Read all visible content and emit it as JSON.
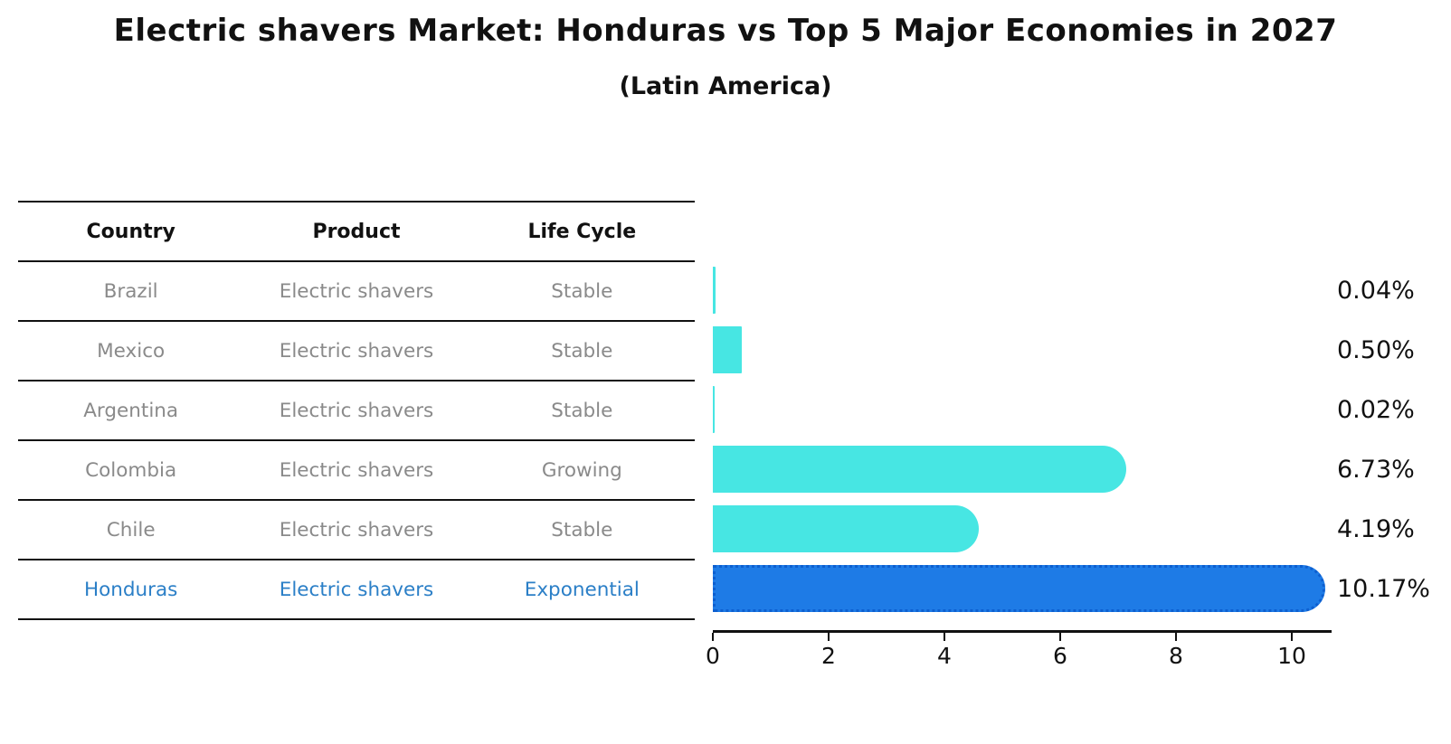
{
  "title": "Electric shavers Market: Honduras vs Top 5 Major Economies in 2027",
  "subtitle": "(Latin America)",
  "table": {
    "headers": [
      "Country",
      "Product",
      "Life Cycle"
    ],
    "rows": [
      {
        "country": "Brazil",
        "product": "Electric shavers",
        "life_cycle": "Stable",
        "highlighted": false
      },
      {
        "country": "Mexico",
        "product": "Electric shavers",
        "life_cycle": "Stable",
        "highlighted": false
      },
      {
        "country": "Argentina",
        "product": "Electric shavers",
        "life_cycle": "Stable",
        "highlighted": false
      },
      {
        "country": "Colombia",
        "product": "Electric shavers",
        "life_cycle": "Growing",
        "highlighted": false
      },
      {
        "country": "Chile",
        "product": "Electric shavers",
        "life_cycle": "Stable",
        "highlighted": false
      },
      {
        "country": "Honduras",
        "product": "Electric shavers",
        "life_cycle": "Exponential",
        "highlighted": true
      }
    ]
  },
  "chart_data": {
    "type": "bar",
    "orientation": "horizontal",
    "title": "Electric shavers Market: Honduras vs Top 5 Major Economies in 2027",
    "subtitle": "(Latin America)",
    "categories": [
      "Brazil",
      "Mexico",
      "Argentina",
      "Colombia",
      "Chile",
      "Honduras"
    ],
    "values": [
      0.04,
      0.5,
      0.02,
      6.73,
      4.19,
      10.17
    ],
    "value_labels": [
      "0.04%",
      "0.50%",
      "0.02%",
      "6.73%",
      "4.19%",
      "10.17%"
    ],
    "x_ticks": [
      "0",
      "2",
      "4",
      "6",
      "8",
      "10"
    ],
    "xlim": [
      0,
      10.6
    ],
    "highlight_index": 5,
    "grid": false,
    "legend": false,
    "colors": {
      "bar": "#47e6e3",
      "highlight_bar": "#1e7be6",
      "highlight_border": "#0d5fd0",
      "highlight_text": "#2b7fc7",
      "row_text": "#8a8a8a",
      "header_text": "#111111",
      "axis": "#111111"
    }
  }
}
